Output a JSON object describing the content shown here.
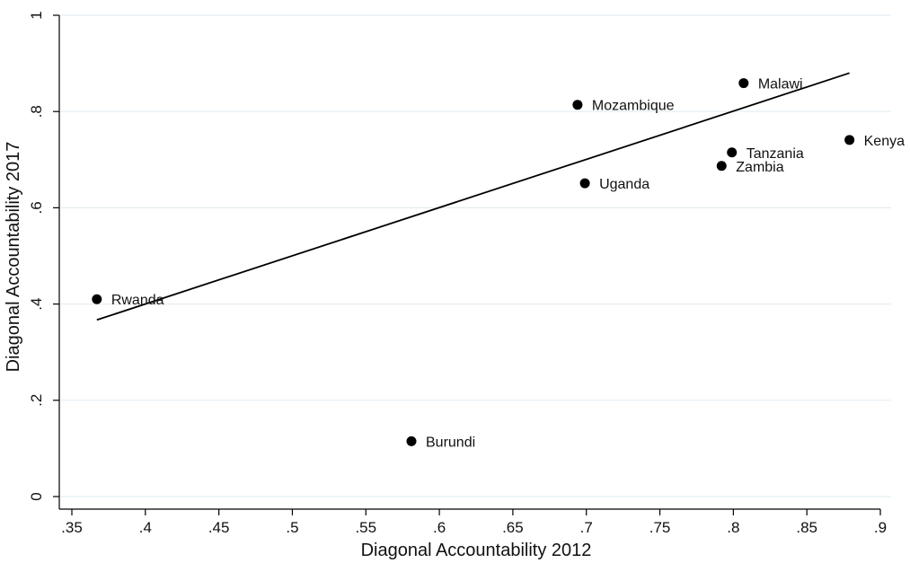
{
  "chart_data": {
    "type": "scatter",
    "title": "",
    "xlabel": "Diagonal Accountability 2012",
    "ylabel": "Diagonal Accountability 2017",
    "xlim": [
      0.35,
      0.9
    ],
    "ylim": [
      0,
      1
    ],
    "x_ticks": [
      0.35,
      0.4,
      0.45,
      0.5,
      0.55,
      0.6,
      0.65,
      0.7,
      0.75,
      0.8,
      0.85,
      0.9
    ],
    "x_tick_labels": [
      ".35",
      ".4",
      ".45",
      ".5",
      ".55",
      ".6",
      ".65",
      ".7",
      ".75",
      ".8",
      ".85",
      ".9"
    ],
    "y_ticks": [
      0,
      0.2,
      0.4,
      0.6,
      0.8,
      1
    ],
    "y_tick_labels": [
      "0",
      ".2",
      ".4",
      ".6",
      ".8",
      "1"
    ],
    "grid": "horizontal",
    "points": [
      {
        "label": "Rwanda",
        "x": 0.367,
        "y": 0.41
      },
      {
        "label": "Burundi",
        "x": 0.581,
        "y": 0.115
      },
      {
        "label": "Mozambique",
        "x": 0.694,
        "y": 0.814
      },
      {
        "label": "Uganda",
        "x": 0.699,
        "y": 0.651
      },
      {
        "label": "Malawi",
        "x": 0.807,
        "y": 0.859
      },
      {
        "label": "Tanzania",
        "x": 0.799,
        "y": 0.715
      },
      {
        "label": "Zambia",
        "x": 0.792,
        "y": 0.687
      },
      {
        "label": "Kenya",
        "x": 0.879,
        "y": 0.741
      }
    ],
    "fit_line": {
      "x": [
        0.367,
        0.879
      ],
      "y": [
        0.367,
        0.88
      ]
    },
    "colors": {
      "marker": "#000000",
      "line": "#000000",
      "grid": "#e4eef2",
      "axis": "#000000"
    }
  }
}
